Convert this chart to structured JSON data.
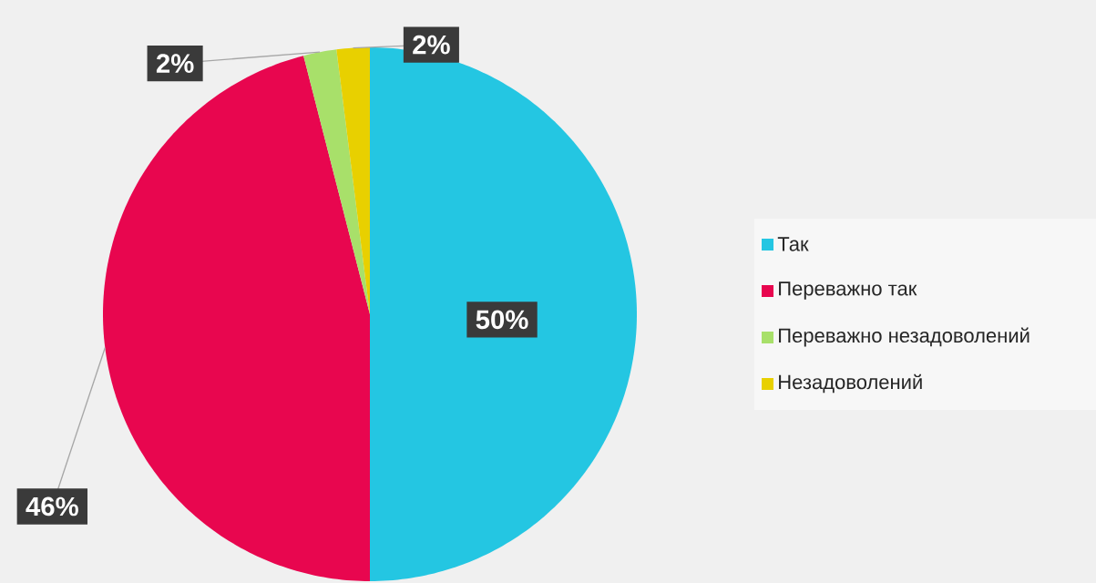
{
  "chart_data": {
    "type": "pie",
    "categories": [
      "Так",
      "Переважно так",
      "Переважно незадоволений",
      "Незадоволений"
    ],
    "values": [
      50,
      46,
      2,
      2
    ],
    "colors": [
      "#24c6e2",
      "#e8064f",
      "#a8e06a",
      "#e8d000"
    ],
    "value_labels": [
      "50%",
      "46%",
      "2%",
      "2%"
    ],
    "legend": "right"
  }
}
